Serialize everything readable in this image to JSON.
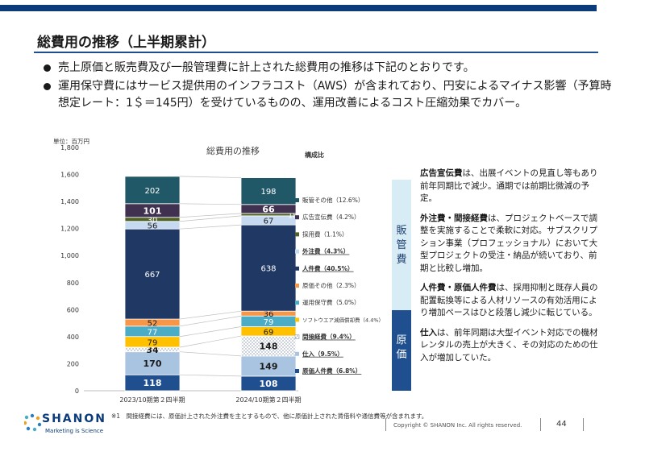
{
  "page": {
    "title": "総費用の推移（上半期累計）",
    "bullets": [
      "売上原価と販売費及び一般管理費に計上された総費用の推移は下記のとおりです。",
      "運用保守費にはサービス提供用のインフラコスト（AWS）が含まれており、円安によるマイナス影響（予算時想定レート：1＄＝145円）を受けているものの、運用改善によるコスト圧縮効果でカバー。"
    ]
  },
  "chart_data": {
    "type": "bar",
    "title": "総費用の推移",
    "unit_label": "単位：百万円",
    "legend_title": "構成比",
    "ylim": [
      0,
      1800
    ],
    "yticks": [
      "0",
      "200",
      "400",
      "600",
      "800",
      "1,000",
      "1,200",
      "1,400",
      "1,600",
      "1,800"
    ],
    "categories": [
      "2023/10期第２四半期",
      "2024/10期第２四半期"
    ],
    "series": [
      {
        "name": "原価人件費（6.8%）",
        "values": [
          118,
          108
        ],
        "color": "#1f4f8f",
        "label_color": "#ffffff",
        "bold": true
      },
      {
        "name": "仕入（9.5%）",
        "values": [
          170,
          149
        ],
        "color": "#a9c4e0",
        "label_color": "#1a1a1a",
        "bold": true
      },
      {
        "name": "間接経費（9.4%）",
        "values": [
          34,
          148
        ],
        "color": "#ffffff",
        "pattern": "dots",
        "label_color": "#1a1a1a",
        "bold": true
      },
      {
        "name": "ソフトウエア減価償却費（4.4%）",
        "values": [
          79,
          69
        ],
        "color": "#ffc000",
        "label_color": "#1a1a1a",
        "bold": false
      },
      {
        "name": "運用保守費（5.0%）",
        "values": [
          77,
          79
        ],
        "color": "#4bacc6",
        "label_color": "#ffffff",
        "bold": false
      },
      {
        "name": "原価その他（2.3%）",
        "values": [
          52,
          36
        ],
        "color": "#f79646",
        "label_color": "#1a1a1a",
        "bold": false
      },
      {
        "name": "人件費（40.5%）",
        "values": [
          667,
          638
        ],
        "color": "#203864",
        "label_color": "#ffffff",
        "bold": false
      },
      {
        "name": "外注費（4.3%）",
        "values": [
          56,
          67
        ],
        "color": "#c5d9f1",
        "label_color": "#1a1a1a",
        "bold": false
      },
      {
        "name": "採用費（1.1%）",
        "values": [
          30,
          18
        ],
        "color": "#4f6228",
        "label_color": "#ffffff",
        "bold": false
      },
      {
        "name": "広告宣伝費（4.2%）",
        "values": [
          101,
          66
        ],
        "color": "#403151",
        "label_color": "#ffffff",
        "bold": true
      },
      {
        "name": "販管その他（12.6%）",
        "values": [
          202,
          198
        ],
        "color": "#215868",
        "label_color": "#ffffff",
        "bold": false
      }
    ],
    "legend_underlined": [
      "間接経費（9.4%）",
      "仕入（9.5%）",
      "原価人件費（6.8%）",
      "外注費（4.3%）",
      "人件費（40.5%）"
    ]
  },
  "side_labels": {
    "top": "販管費",
    "bottom": "原価"
  },
  "notes": [
    {
      "head": "広告宣伝費",
      "body": "は、出展イベントの見直し等もあり前年同期比で減少。通期では前期比微減の予定。"
    },
    {
      "head": "外注費・間接経費",
      "body": "は、プロジェクトベースで調整を実施することで柔軟に対応。サブスクリプション事業（プロフェッショナル）において大型プロジェクトの受注・納品が続いており、前期と比較し増加。"
    },
    {
      "head": "人件費・原価人件費",
      "body": "は、採用抑制と既存人員の配置転換等による人材リソースの有効活用により増加ペースはひと段落し減少に転じている。"
    },
    {
      "head": "仕入",
      "body": "は、前年同期は大型イベント対応での機材レンタルの売上が大きく、その対応のための仕入が増加していた。"
    }
  ],
  "footnote": "※1　間接経費には、原価計上された外注費を主とするもので、他に原価計上された賃借料や通信費等が含まれます。",
  "footer": {
    "logo": "SHANON",
    "logo_sub": "Marketing is Science",
    "copyright": "Copyright © SHANON Inc. All rights reserved.",
    "page_number": "44"
  }
}
